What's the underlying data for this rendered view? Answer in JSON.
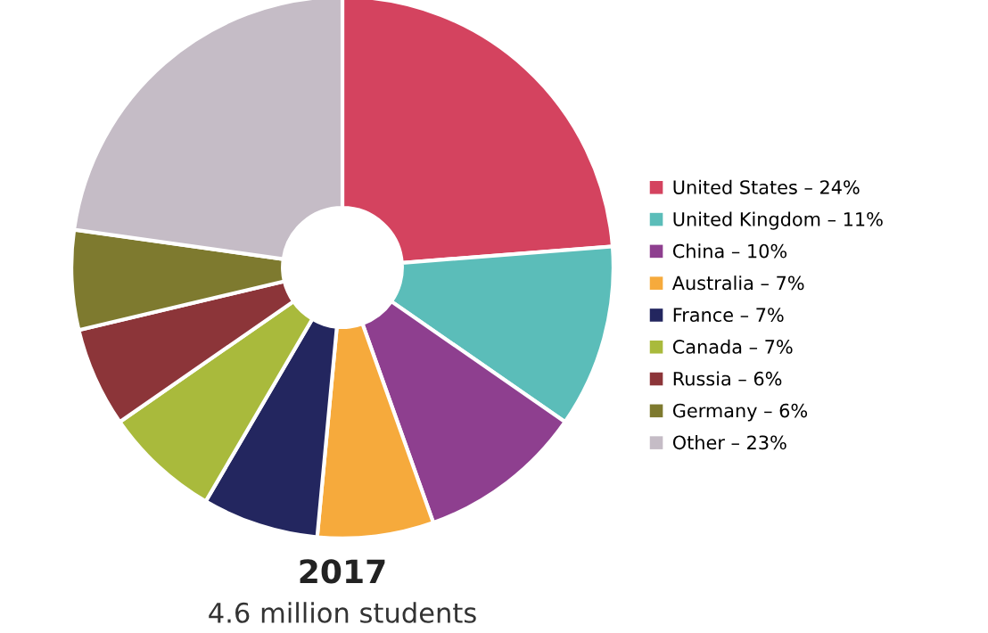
{
  "chart_data": {
    "type": "donut",
    "title": "2017",
    "subtitle": "4.6 million students",
    "categories": [
      "United States – 24%",
      "United Kingdom – 11%",
      "China – 10%",
      "Australia – 7%",
      "France – 7%",
      "Canada – 7%",
      "Russia – 6%",
      "Germany – 6%",
      "Other – 23%"
    ],
    "values": [
      24,
      11,
      10,
      7,
      7,
      7,
      6,
      6,
      23
    ],
    "colors": [
      "#d4435f",
      "#5bbdb9",
      "#8e3f8f",
      "#f6aa3c",
      "#23265f",
      "#a9ba3c",
      "#8c3539",
      "#7e7a2f",
      "#c5bcc6"
    ],
    "legend": "right"
  }
}
